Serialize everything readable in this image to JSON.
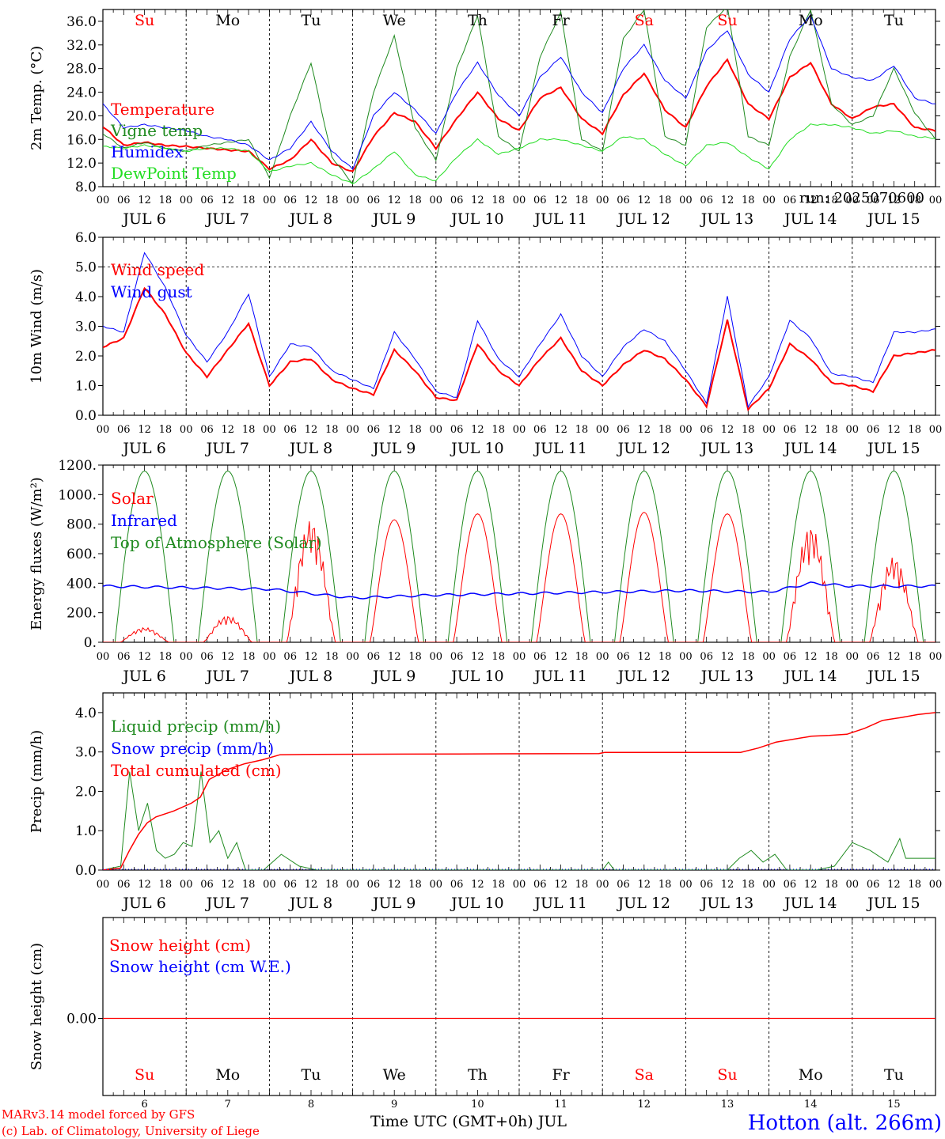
{
  "run_label": "run: 2025070600",
  "x_axis": {
    "hour_ticks": [
      "00",
      "06",
      "12",
      "18"
    ],
    "final_tick": "00",
    "date_labels": [
      "JUL  6",
      "JUL  7",
      "JUL  8",
      "JUL  9",
      "JUL 10",
      "JUL 11",
      "JUL 12",
      "JUL 13",
      "JUL 14",
      "JUL 15"
    ],
    "day_names": [
      "Su",
      "Mo",
      "Tu",
      "We",
      "Th",
      "Fr",
      "Sa",
      "Su",
      "Mo",
      "Tu"
    ],
    "weekend_flags": [
      true,
      false,
      false,
      false,
      false,
      false,
      true,
      true,
      false,
      false
    ],
    "day_numbers": [
      "6",
      "7",
      "8",
      "9",
      "10",
      "11",
      "12",
      "13",
      "14",
      "15"
    ],
    "title": "Time UTC (GMT+0h) JUL"
  },
  "footer": {
    "credit_line1": "MARv3.14 model forced by GFS",
    "credit_line2": "(c) Lab. of Climatology, University of Liege",
    "station": "Hotton (alt. 266m)"
  },
  "colors": {
    "red": "#ff0000",
    "blue": "#0000ff",
    "green": "#1f8a1f",
    "lightgreen": "#22dd22",
    "weekend": "#ff0000"
  },
  "chart_data": [
    {
      "type": "line",
      "ylabel": "2m Temp. (°C)",
      "ylim": [
        8,
        38
      ],
      "yticks": [
        "8.0",
        "12.0",
        "16.0",
        "20.0",
        "24.0",
        "28.0",
        "32.0",
        "36.0"
      ],
      "yticks_values": [
        8,
        12,
        16,
        20,
        24,
        28,
        32,
        36
      ],
      "x_hours": [
        0,
        6,
        12,
        18,
        24,
        30,
        36,
        42,
        48,
        54,
        60,
        66,
        72,
        78,
        84,
        90,
        96,
        102,
        108,
        114,
        120,
        126,
        132,
        138,
        144,
        150,
        156,
        162,
        168,
        174,
        180,
        186,
        192,
        198,
        204,
        210,
        216,
        222,
        228,
        234,
        240
      ],
      "series": [
        {
          "name": "Temperature",
          "color": "red",
          "width": 2,
          "values": [
            18.2,
            15.0,
            15.5,
            15.0,
            14.8,
            14.5,
            14.2,
            14.0,
            11.0,
            12.5,
            16.0,
            12.0,
            10.5,
            16.5,
            20.5,
            19.0,
            14.5,
            19.5,
            24.0,
            19.5,
            17.5,
            23.0,
            24.8,
            19.5,
            17.0,
            23.5,
            27.2,
            21.0,
            18.0,
            25.0,
            29.5,
            22.0,
            19.5,
            26.5,
            29.0,
            22.0,
            19.5,
            21.5,
            22.0,
            18.0,
            17.5
          ]
        },
        {
          "name": "Vigne temp",
          "color": "green",
          "width": 1,
          "values": [
            17.0,
            14.5,
            15.5,
            14.5,
            14.0,
            15.0,
            15.5,
            16.0,
            9.5,
            20.0,
            29.0,
            13.0,
            8.5,
            24.0,
            33.5,
            18.0,
            12.5,
            28.0,
            37.0,
            16.5,
            14.0,
            30.0,
            37.5,
            16.0,
            14.0,
            33.0,
            38.0,
            16.5,
            15.0,
            35.0,
            38.5,
            16.5,
            15.0,
            30.0,
            38.0,
            22.0,
            18.5,
            20.0,
            28.0,
            20.5,
            16.0
          ]
        },
        {
          "name": "Humidex",
          "color": "blue",
          "width": 1,
          "values": [
            22.0,
            18.0,
            18.5,
            18.0,
            17.5,
            16.5,
            16.0,
            15.0,
            12.5,
            14.5,
            19.0,
            14.0,
            11.0,
            20.0,
            24.0,
            21.0,
            17.0,
            24.0,
            29.0,
            23.5,
            20.0,
            26.5,
            30.0,
            24.0,
            20.5,
            28.0,
            32.0,
            26.0,
            23.0,
            31.0,
            34.5,
            27.0,
            24.0,
            33.0,
            37.0,
            28.0,
            26.5,
            26.0,
            28.5,
            23.0,
            22.0
          ]
        },
        {
          "name": "DewPoint Temp",
          "color": "lightgreen",
          "width": 1,
          "values": [
            14.8,
            14.5,
            15.0,
            14.5,
            14.0,
            14.5,
            14.5,
            14.0,
            10.5,
            11.5,
            12.0,
            10.0,
            8.5,
            11.0,
            14.0,
            10.0,
            9.0,
            13.0,
            16.0,
            13.5,
            14.5,
            16.0,
            16.0,
            15.0,
            14.0,
            16.5,
            16.0,
            13.5,
            11.5,
            15.0,
            15.5,
            13.0,
            11.0,
            16.0,
            18.5,
            18.5,
            18.0,
            17.0,
            17.5,
            16.5,
            16.2
          ]
        }
      ],
      "hline": null
    },
    {
      "type": "line",
      "ylabel": "10m Wind (m/s)",
      "ylim": [
        0,
        6
      ],
      "yticks": [
        "0.0",
        "1.0",
        "2.0",
        "3.0",
        "4.0",
        "5.0",
        "6.0"
      ],
      "yticks_values": [
        0,
        1,
        2,
        3,
        4,
        5,
        6
      ],
      "x_hours": [
        0,
        6,
        12,
        18,
        24,
        30,
        36,
        42,
        48,
        54,
        60,
        66,
        72,
        78,
        84,
        90,
        96,
        102,
        108,
        114,
        120,
        126,
        132,
        138,
        144,
        150,
        156,
        162,
        168,
        174,
        180,
        186,
        192,
        198,
        204,
        210,
        216,
        222,
        228,
        234,
        240
      ],
      "series": [
        {
          "name": "Wind speed",
          "color": "red",
          "width": 2,
          "values": [
            2.3,
            2.6,
            4.3,
            3.4,
            2.1,
            1.3,
            2.2,
            3.1,
            1.0,
            1.8,
            1.9,
            1.2,
            0.9,
            0.7,
            2.2,
            1.5,
            0.6,
            0.5,
            2.4,
            1.5,
            1.0,
            1.9,
            2.6,
            1.5,
            1.0,
            1.7,
            2.2,
            1.9,
            1.2,
            0.3,
            3.2,
            0.2,
            0.9,
            2.4,
            1.9,
            1.1,
            1.0,
            0.8,
            2.0,
            2.1,
            2.2
          ]
        },
        {
          "name": "Wind gust",
          "color": "blue",
          "width": 1,
          "values": [
            3.0,
            2.8,
            5.5,
            4.3,
            2.7,
            1.8,
            2.8,
            4.1,
            1.3,
            2.4,
            2.3,
            1.5,
            1.2,
            0.9,
            2.8,
            1.9,
            0.8,
            0.6,
            3.2,
            1.9,
            1.3,
            2.4,
            3.4,
            2.0,
            1.3,
            2.3,
            2.9,
            2.5,
            1.5,
            0.4,
            4.0,
            0.3,
            1.3,
            3.2,
            2.6,
            1.4,
            1.3,
            1.1,
            2.8,
            2.8,
            2.9
          ]
        }
      ],
      "hline": 5.0
    },
    {
      "type": "line",
      "ylabel": "Energy fluxes (W/m²)",
      "ylim": [
        0,
        1200
      ],
      "yticks": [
        "0.",
        "200.",
        "400.",
        "600.",
        "800.",
        "1000.",
        "1200."
      ],
      "yticks_values": [
        0,
        200,
        400,
        600,
        800,
        1000,
        1200
      ],
      "series": [
        {
          "name": "Solar",
          "color": "red",
          "width": 1,
          "daily_peaks": [
            100,
            180,
            830,
            830,
            870,
            870,
            880,
            870,
            790,
            580
          ]
        },
        {
          "name": "Infrared",
          "color": "blue",
          "width": 1.5,
          "x_hours": [
            0,
            24,
            48,
            60,
            72,
            96,
            120,
            144,
            168,
            192,
            204,
            216,
            240
          ],
          "values": [
            380,
            370,
            360,
            330,
            300,
            320,
            330,
            340,
            350,
            340,
            400,
            380,
            380
          ]
        },
        {
          "name": "Top of Atmosphere (Solar)",
          "color": "green",
          "width": 1,
          "daily_peak": 1160
        }
      ],
      "hline": null
    },
    {
      "type": "line",
      "ylabel": "Precip (mm/h)",
      "ylim": [
        0,
        4.5
      ],
      "yticks": [
        "0.0",
        "1.0",
        "2.0",
        "3.0",
        "4.0"
      ],
      "yticks_values": [
        0,
        1,
        2,
        3,
        4
      ],
      "series": [
        {
          "name": "Liquid precip (mm/h)",
          "color": "green",
          "width": 1,
          "x_hours": [
            0,
            6,
            9,
            12,
            15,
            18,
            21,
            24,
            27,
            30,
            33,
            36,
            39,
            42,
            45,
            48,
            54,
            60,
            66,
            72,
            120,
            168,
            170,
            172,
            174,
            210,
            214,
            218,
            222,
            226,
            230,
            240,
            246,
            252,
            258,
            264,
            268,
            270,
            276,
            280
          ],
          "values": [
            0.0,
            0.1,
            2.5,
            1.0,
            1.7,
            0.5,
            0.3,
            0.4,
            0.7,
            0.6,
            2.5,
            0.7,
            1.0,
            0.3,
            0.7,
            0.0,
            0.0,
            0.4,
            0.1,
            0.0,
            0.0,
            0.0,
            0.2,
            0.0,
            0.0,
            0.0,
            0.3,
            0.5,
            0.2,
            0.4,
            0.0,
            0.0,
            0.1,
            0.7,
            0.5,
            0.2,
            0.8,
            0.3,
            0.3,
            0.3
          ]
        },
        {
          "name": "Snow precip (mm/h)",
          "color": "blue",
          "width": 1,
          "values": []
        },
        {
          "name": "Total cumulated (cm)",
          "color": "red",
          "width": 1.5,
          "x_hours": [
            0,
            6,
            9,
            12,
            15,
            18,
            24,
            30,
            33,
            36,
            42,
            48,
            54,
            60,
            72,
            120,
            168,
            170,
            216,
            222,
            228,
            240,
            246,
            252,
            258,
            264,
            270,
            276,
            282
          ],
          "values": [
            0.0,
            0.05,
            0.5,
            0.9,
            1.2,
            1.35,
            1.5,
            1.7,
            1.85,
            2.3,
            2.55,
            2.7,
            2.8,
            2.93,
            2.94,
            2.95,
            2.96,
            2.99,
            2.99,
            3.1,
            3.25,
            3.4,
            3.42,
            3.45,
            3.6,
            3.8,
            3.87,
            3.95,
            4.0
          ]
        }
      ],
      "hline": null
    },
    {
      "type": "line",
      "ylabel": "Snow height (cm)",
      "yticks": [
        "0.00"
      ],
      "yticks_values": [
        0
      ],
      "series": [
        {
          "name": "Snow height (cm)",
          "color": "red",
          "width": 1,
          "values": [
            0,
            0
          ]
        },
        {
          "name": "Snow height (cm W.E.)",
          "color": "blue",
          "width": 1,
          "values": [
            0,
            0
          ]
        }
      ],
      "hline": null
    }
  ]
}
